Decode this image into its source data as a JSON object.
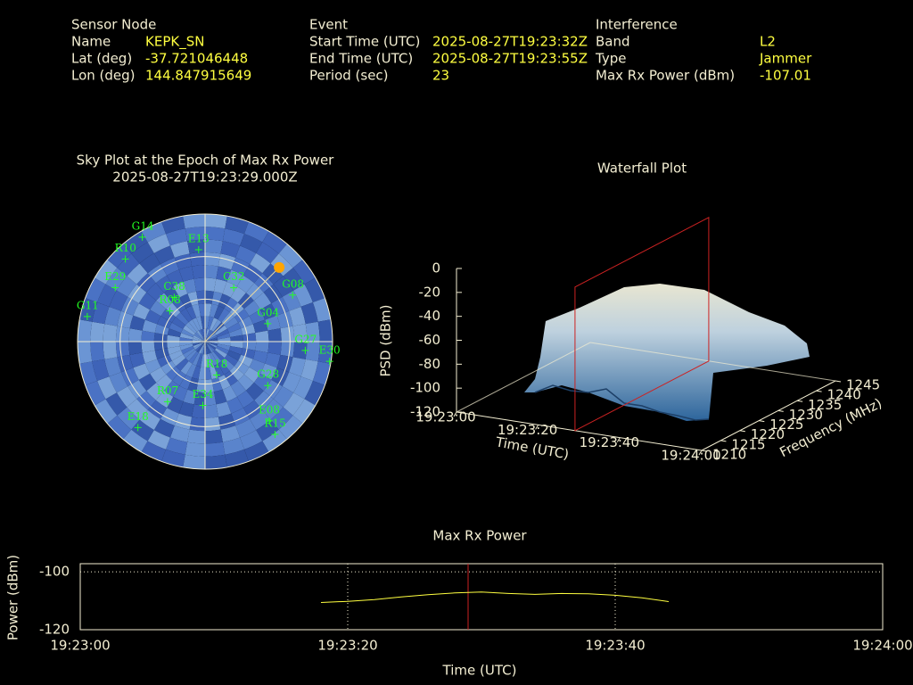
{
  "header": {
    "sections": [
      {
        "title": "Sensor Node",
        "rows": [
          [
            "Name",
            "KEPK_SN"
          ],
          [
            "Lat (deg)",
            "-37.721046448"
          ],
          [
            "Lon (deg)",
            "144.847915649"
          ]
        ]
      },
      {
        "title": "Event",
        "rows": [
          [
            "Start Time (UTC)",
            "2025-08-27T19:23:32Z"
          ],
          [
            "End Time (UTC)",
            "2025-08-27T19:23:55Z"
          ],
          [
            "Period (sec)",
            "23"
          ]
        ]
      },
      {
        "title": "Interference",
        "rows": [
          [
            "Band",
            "L2"
          ],
          [
            "Type",
            "Jammer"
          ],
          [
            "Max Rx Power (dBm)",
            "-107.01"
          ]
        ]
      }
    ]
  },
  "chart_data": [
    {
      "type": "sky",
      "title": "Sky Plot at the Epoch of Max Rx Power",
      "subtitle": "2025-08-27T19:23:29.000Z",
      "color": "#22ff22",
      "ring_elevations": [
        0,
        30,
        60
      ],
      "azimuth_lines": [
        0,
        90,
        180,
        270
      ],
      "satellites": [
        {
          "name": "G14",
          "azimuth": 329,
          "elevation": 4
        },
        {
          "name": "E13",
          "azimuth": 356,
          "elevation": 25
        },
        {
          "name": "R10",
          "azimuth": 316,
          "elevation": 9
        },
        {
          "name": "G08",
          "azimuth": 62,
          "elevation": 20
        },
        {
          "name": "G04",
          "azimuth": 74,
          "elevation": 44
        },
        {
          "name": "G27",
          "azimuth": 95,
          "elevation": 19
        },
        {
          "name": "E30",
          "azimuth": 99,
          "elevation": 1
        },
        {
          "name": "G11",
          "azimuth": 282,
          "elevation": 5
        },
        {
          "name": "R18",
          "azimuth": 161,
          "elevation": 65
        },
        {
          "name": "E34",
          "azimuth": 182,
          "elevation": 45
        },
        {
          "name": "R07",
          "azimuth": 212,
          "elevation": 40
        },
        {
          "name": "G28",
          "azimuth": 125,
          "elevation": 36
        },
        {
          "name": "E08",
          "azimuth": 141,
          "elevation": 18
        },
        {
          "name": "R15",
          "azimuth": 143,
          "elevation": 8
        },
        {
          "name": "E18",
          "azimuth": 218,
          "elevation": 13
        },
        {
          "name": "R08",
          "azimuth": 311,
          "elevation": 57
        },
        {
          "name": "C38",
          "azimuth": 325,
          "elevation": 52
        },
        {
          "name": "C32",
          "azimuth": 28,
          "elevation": 47
        },
        {
          "name": "E29",
          "azimuth": 301,
          "elevation": 16
        }
      ],
      "jammer": {
        "azimuth": 45,
        "elevation": 16,
        "color": "#ffa500"
      }
    },
    {
      "type": "waterfall3d",
      "title": "Waterfall Plot",
      "xlabel": "Time (UTC)",
      "ylabel": "Frequency (MHz)",
      "zlabel": "PSD (dBm)",
      "xlim": [
        "19:23:00",
        "19:24:00"
      ],
      "xticks": [
        "19:23:00",
        "19:23:20",
        "19:23:40",
        "19:24:00"
      ],
      "ylim": [
        1210,
        1245
      ],
      "yticks": [
        1210,
        1215,
        1220,
        1225,
        1230,
        1235,
        1240,
        1245
      ],
      "zlim": [
        -120,
        0
      ],
      "zticks": [
        0,
        -20,
        -40,
        -60,
        -80,
        -100,
        -120
      ],
      "marker_time": "19:23:29",
      "marker_color": "#cc2222"
    },
    {
      "type": "line",
      "title": "Max Rx Power",
      "xlabel": "Time (UTC)",
      "ylabel": "Power (dBm)",
      "xlim": [
        "19:23:00",
        "19:24:00"
      ],
      "xticks": [
        "19:23:00",
        "19:23:20",
        "19:23:40",
        "19:24:00"
      ],
      "ylim": [
        -120,
        -97.2
      ],
      "yticks": [
        -100,
        -120
      ],
      "grid": true,
      "x": [
        "19:23:18",
        "19:23:20",
        "19:23:22",
        "19:23:24",
        "19:23:26",
        "19:23:28",
        "19:23:30",
        "19:23:32",
        "19:23:34",
        "19:23:36",
        "19:23:38",
        "19:23:40",
        "19:23:42",
        "19:23:44"
      ],
      "color": "#ffff40",
      "values": [
        -110.6,
        -110.2,
        -109.6,
        -108.7,
        -107.9,
        -107.3,
        -107.01,
        -107.5,
        -107.8,
        -107.5,
        -107.6,
        -108.1,
        -109.0,
        -110.3
      ],
      "marker_time": "19:23:29",
      "marker_color": "#cc2222"
    }
  ]
}
